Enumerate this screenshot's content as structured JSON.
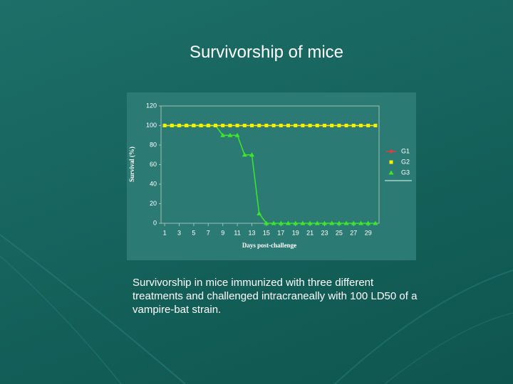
{
  "title": "Survivorship of mice",
  "caption": "Survivorship in mice immunized with three different treatments and challenged intracraneally with 100 LD50 of a vampire-bat strain.",
  "chart_data": {
    "type": "line",
    "x_label": "Days post-challenge",
    "y_label": "Survival (%)",
    "x": [
      1,
      2,
      3,
      4,
      5,
      6,
      7,
      8,
      9,
      10,
      11,
      12,
      13,
      14,
      15,
      16,
      17,
      18,
      19,
      20,
      21,
      22,
      23,
      24,
      25,
      26,
      27,
      28,
      29,
      30
    ],
    "xlim": [
      0.5,
      30.5
    ],
    "xticks": [
      1,
      3,
      5,
      7,
      9,
      11,
      13,
      15,
      17,
      19,
      21,
      23,
      25,
      27,
      29
    ],
    "ylim": [
      0,
      120
    ],
    "yticks": [
      0,
      20,
      40,
      60,
      80,
      100,
      120
    ],
    "legend": "right",
    "series": [
      {
        "name": "G1",
        "color": "#e83a3a",
        "marker": "diamond",
        "values": [
          100,
          100,
          100,
          100,
          100,
          100,
          100,
          100,
          100,
          100,
          100,
          100,
          100,
          100,
          100,
          100,
          100,
          100,
          100,
          100,
          100,
          100,
          100,
          100,
          100,
          100,
          100,
          100,
          100,
          100
        ]
      },
      {
        "name": "G2",
        "color": "#f2f200",
        "marker": "square",
        "values": [
          100,
          100,
          100,
          100,
          100,
          100,
          100,
          100,
          100,
          100,
          100,
          100,
          100,
          100,
          100,
          100,
          100,
          100,
          100,
          100,
          100,
          100,
          100,
          100,
          100,
          100,
          100,
          100,
          100,
          100
        ]
      },
      {
        "name": "G3",
        "color": "#3ee62a",
        "marker": "triangle",
        "values": [
          100,
          100,
          100,
          100,
          100,
          100,
          100,
          100,
          90,
          90,
          90,
          70,
          70,
          10,
          0,
          0,
          0,
          0,
          0,
          0,
          0,
          0,
          0,
          0,
          0,
          0,
          0,
          0,
          0,
          0
        ]
      }
    ]
  }
}
